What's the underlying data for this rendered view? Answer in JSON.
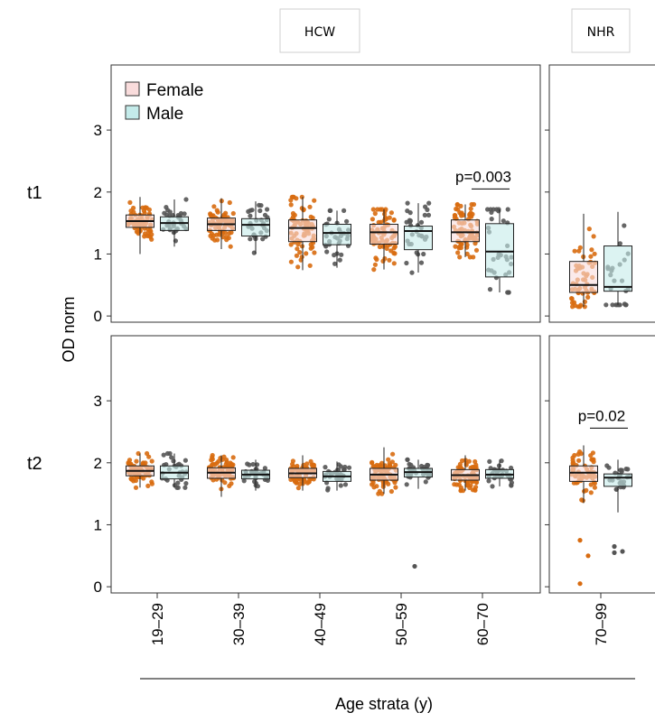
{
  "chart_data": {
    "type": "box",
    "xlabel": "Age strata (y)",
    "ylabel": "OD norm",
    "ylim": [
      -0.1,
      4.05
    ],
    "yticks": [
      0,
      1,
      2,
      3
    ],
    "grid": false,
    "legend_position": "top-left",
    "columns": [
      {
        "label": "HCW",
        "categories": [
          "19–29",
          "30–39",
          "40–49",
          "50–59",
          "60–70"
        ]
      },
      {
        "label": "NHR",
        "categories": [
          "70–99"
        ]
      }
    ],
    "rows": [
      "t1",
      "t2"
    ],
    "series": [
      {
        "name": "Female",
        "fill": "#f9dcdc",
        "point_color": "#d86b10"
      },
      {
        "name": "Male",
        "fill": "#c4ebea",
        "point_color": "#555555"
      }
    ],
    "boxes": [
      {
        "row": "t1",
        "category": "19–29",
        "series": "Female",
        "q1": 1.43,
        "median": 1.53,
        "q3": 1.63,
        "whisker_low": 1.0,
        "whisker_high": 1.92
      },
      {
        "row": "t1",
        "category": "19–29",
        "series": "Male",
        "q1": 1.38,
        "median": 1.5,
        "q3": 1.6,
        "whisker_low": 1.12,
        "whisker_high": 1.88
      },
      {
        "row": "t1",
        "category": "30–39",
        "series": "Female",
        "q1": 1.38,
        "median": 1.48,
        "q3": 1.58,
        "whisker_low": 1.08,
        "whisker_high": 1.9
      },
      {
        "row": "t1",
        "category": "30–39",
        "series": "Male",
        "q1": 1.29,
        "median": 1.47,
        "q3": 1.57,
        "whisker_low": 1.0,
        "whisker_high": 1.85
      },
      {
        "row": "t1",
        "category": "40–49",
        "series": "Female",
        "q1": 1.2,
        "median": 1.42,
        "q3": 1.55,
        "whisker_low": 0.74,
        "whisker_high": 1.92
      },
      {
        "row": "t1",
        "category": "40–49",
        "series": "Male",
        "q1": 1.15,
        "median": 1.34,
        "q3": 1.48,
        "whisker_low": 0.78,
        "whisker_high": 1.7
      },
      {
        "row": "t1",
        "category": "50–59",
        "series": "Female",
        "q1": 1.16,
        "median": 1.35,
        "q3": 1.48,
        "whisker_low": 0.75,
        "whisker_high": 1.72
      },
      {
        "row": "t1",
        "category": "50–59",
        "series": "Male",
        "q1": 1.07,
        "median": 1.37,
        "q3": 1.45,
        "whisker_low": 0.7,
        "whisker_high": 1.82
      },
      {
        "row": "t1",
        "category": "60–70",
        "series": "Female",
        "q1": 1.2,
        "median": 1.35,
        "q3": 1.55,
        "whisker_low": 0.95,
        "whisker_high": 1.8
      },
      {
        "row": "t1",
        "category": "60–70",
        "series": "Male",
        "q1": 0.63,
        "median": 1.04,
        "q3": 1.49,
        "whisker_low": 0.38,
        "whisker_high": 1.72
      },
      {
        "row": "t1",
        "category": "70–99",
        "series": "Female",
        "q1": 0.38,
        "median": 0.5,
        "q3": 0.88,
        "whisker_low": 0.15,
        "whisker_high": 1.65
      },
      {
        "row": "t1",
        "category": "70–99",
        "series": "Male",
        "q1": 0.4,
        "median": 0.47,
        "q3": 1.13,
        "whisker_low": 0.18,
        "whisker_high": 1.68
      },
      {
        "row": "t2",
        "category": "19–29",
        "series": "Female",
        "q1": 1.79,
        "median": 1.87,
        "q3": 1.95,
        "whisker_low": 1.6,
        "whisker_high": 2.15
      },
      {
        "row": "t2",
        "category": "19–29",
        "series": "Male",
        "q1": 1.74,
        "median": 1.84,
        "q3": 1.95,
        "whisker_low": 1.6,
        "whisker_high": 2.15
      },
      {
        "row": "t2",
        "category": "30–39",
        "series": "Female",
        "q1": 1.75,
        "median": 1.84,
        "q3": 1.92,
        "whisker_low": 1.45,
        "whisker_high": 2.12
      },
      {
        "row": "t2",
        "category": "30–39",
        "series": "Male",
        "q1": 1.74,
        "median": 1.81,
        "q3": 1.88,
        "whisker_low": 1.55,
        "whisker_high": 2.05
      },
      {
        "row": "t2",
        "category": "40–49",
        "series": "Female",
        "q1": 1.76,
        "median": 1.83,
        "q3": 1.91,
        "whisker_low": 1.55,
        "whisker_high": 2.12
      },
      {
        "row": "t2",
        "category": "40–49",
        "series": "Male",
        "q1": 1.7,
        "median": 1.78,
        "q3": 1.86,
        "whisker_low": 1.55,
        "whisker_high": 2.02
      },
      {
        "row": "t2",
        "category": "50–59",
        "series": "Female",
        "q1": 1.72,
        "median": 1.81,
        "q3": 1.91,
        "whisker_low": 1.5,
        "whisker_high": 2.25
      },
      {
        "row": "t2",
        "category": "50–59",
        "series": "Male",
        "q1": 1.77,
        "median": 1.85,
        "q3": 1.91,
        "whisker_low": 1.58,
        "whisker_high": 2.05
      },
      {
        "row": "t2",
        "category": "60–70",
        "series": "Female",
        "q1": 1.72,
        "median": 1.8,
        "q3": 1.89,
        "whisker_low": 1.55,
        "whisker_high": 2.12
      },
      {
        "row": "t2",
        "category": "60–70",
        "series": "Male",
        "q1": 1.75,
        "median": 1.81,
        "q3": 1.89,
        "whisker_low": 1.62,
        "whisker_high": 2.05
      },
      {
        "row": "t2",
        "category": "70–99",
        "series": "Female",
        "q1": 1.7,
        "median": 1.84,
        "q3": 1.95,
        "whisker_low": 1.35,
        "whisker_high": 2.28
      },
      {
        "row": "t2",
        "category": "70–99",
        "series": "Male",
        "q1": 1.62,
        "median": 1.76,
        "q3": 1.82,
        "whisker_low": 1.2,
        "whisker_high": 2.05
      }
    ],
    "outliers": [
      {
        "row": "t2",
        "category": "50–59",
        "series": "Male",
        "values": [
          0.33
        ]
      },
      {
        "row": "t2",
        "category": "70–99",
        "series": "Female",
        "values": [
          0.05,
          0.5,
          0.75
        ]
      },
      {
        "row": "t2",
        "category": "70–99",
        "series": "Male",
        "values": [
          0.55,
          0.57,
          0.65
        ]
      }
    ],
    "annotations": [
      {
        "row": "t1",
        "category": "60–70",
        "text": "p=0.003",
        "y": 2.05
      },
      {
        "row": "t2",
        "category": "70–99",
        "text": "p=0.02",
        "y": 2.56
      }
    ]
  }
}
